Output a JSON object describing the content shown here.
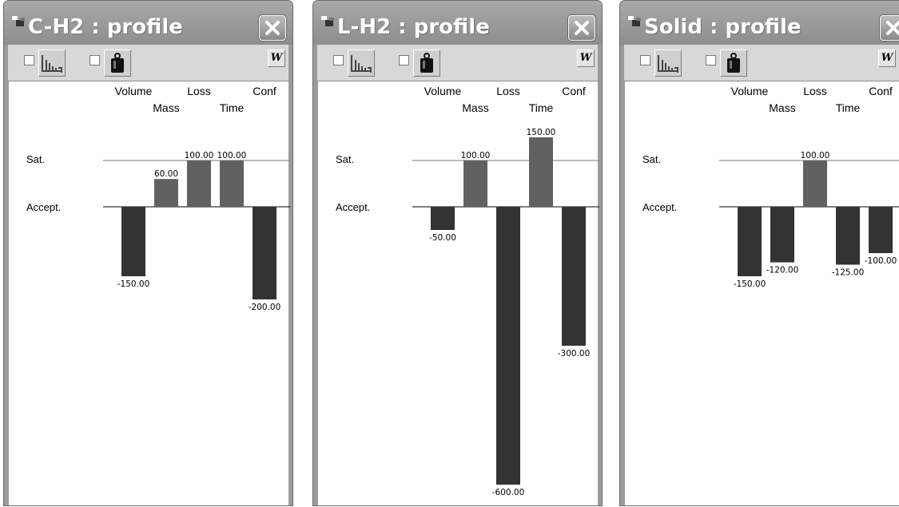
{
  "windows": [
    {
      "title": "C-H2 : profile",
      "toolbar": {
        "w_label": "W"
      },
      "profile": {
        "column_headers_top": [
          "Volume",
          "Loss",
          "Conf"
        ],
        "column_headers_bottom": [
          "Mass",
          "Time"
        ],
        "row_labels": [
          "Sat.",
          "Accept."
        ]
      }
    },
    {
      "title": "L-H2 : profile",
      "toolbar": {
        "w_label": "W"
      },
      "profile": {
        "column_headers_top": [
          "Volume",
          "Loss",
          "Conf"
        ],
        "column_headers_bottom": [
          "Mass",
          "Time"
        ],
        "row_labels": [
          "Sat.",
          "Accept."
        ]
      }
    },
    {
      "title": "Solid : profile",
      "toolbar": {
        "w_label": "W"
      },
      "profile": {
        "column_headers_top": [
          "Volume",
          "Loss",
          "Conf"
        ],
        "column_headers_bottom": [
          "Mass",
          "Time"
        ],
        "row_labels": [
          "Sat.",
          "Accept."
        ]
      }
    }
  ],
  "colors": {
    "positive_bar": "#616161",
    "negative_bar": "#333333",
    "title_bar": "#9a9a9a"
  },
  "icons": [
    "app-icon",
    "close-icon",
    "bar-profile-icon",
    "weight-icon"
  ],
  "chart_data": [
    {
      "type": "bar",
      "categories": [
        "Volume",
        "Mass",
        "Loss",
        "Time",
        "Conf"
      ],
      "values": [
        -150,
        60,
        100,
        100,
        -200
      ],
      "labels": [
        "-150.00",
        "60.00",
        "100.00",
        "100.00",
        "-200.00"
      ],
      "reference_lines": {
        "Sat.": 100,
        "Accept.": 0
      }
    },
    {
      "type": "bar",
      "categories": [
        "Volume",
        "Mass",
        "Loss",
        "Time",
        "Conf"
      ],
      "values": [
        -50,
        100,
        -600,
        150,
        -300
      ],
      "labels": [
        "-50.00",
        "100.00",
        "-600.00",
        "150.00",
        "-300.00"
      ],
      "reference_lines": {
        "Sat.": 100,
        "Accept.": 0
      }
    },
    {
      "type": "bar",
      "categories": [
        "Volume",
        "Mass",
        "Loss",
        "Time",
        "Conf"
      ],
      "values": [
        -150,
        -120,
        100,
        -125,
        -100
      ],
      "labels": [
        "-150.00",
        "-120.00",
        "100.00",
        "-125.00",
        "-100.00"
      ],
      "reference_lines": {
        "Sat.": 100,
        "Accept.": 0
      }
    }
  ]
}
